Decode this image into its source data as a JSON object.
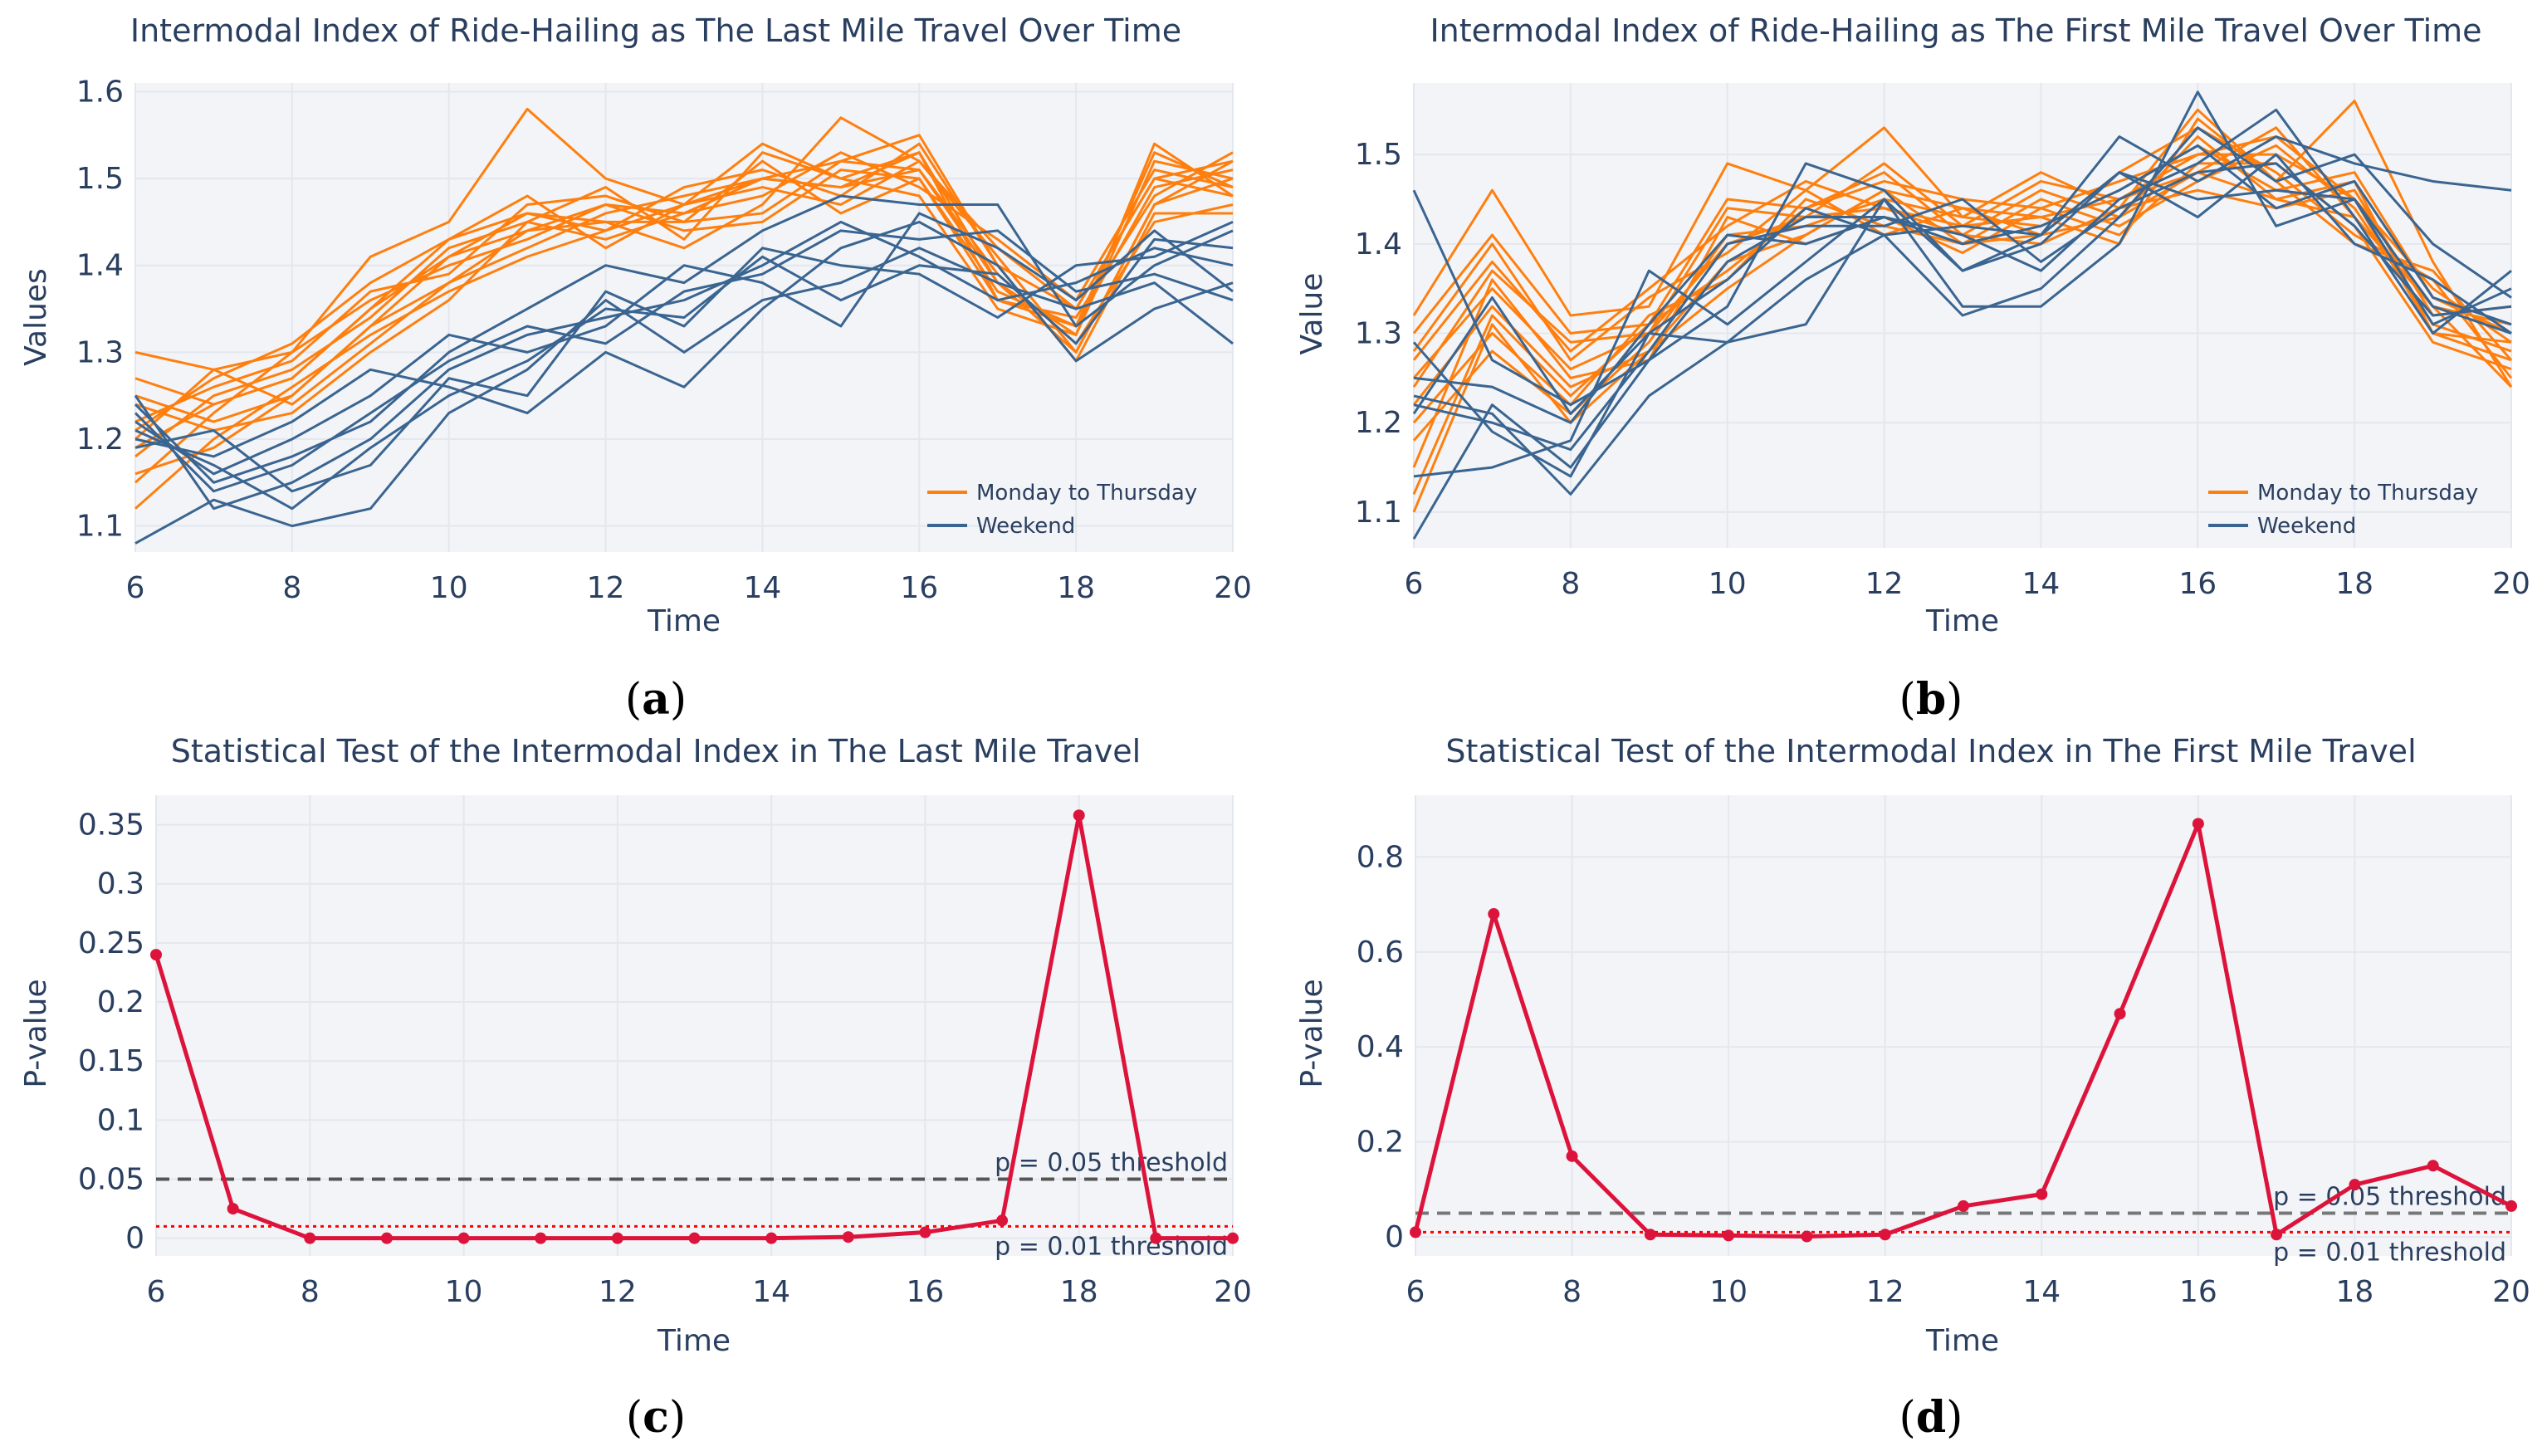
{
  "chart_data": [
    {
      "id": "a",
      "type": "line",
      "title": "Intermodal Index of Ride-Hailing as The Last Mile Travel Over Time",
      "xlabel": "Time",
      "ylabel": "Values",
      "xlim": [
        6,
        20
      ],
      "ylim": [
        1.07,
        1.61
      ],
      "xticks": [
        6,
        8,
        10,
        12,
        14,
        16,
        18,
        20
      ],
      "yticks": [
        1.1,
        1.2,
        1.3,
        1.4,
        1.5,
        1.6
      ],
      "ytick_labels": [
        "1.1",
        "1.2",
        "1.3",
        "1.4",
        "1.5",
        "1.6"
      ],
      "x": [
        6,
        7,
        8,
        9,
        10,
        11,
        12,
        13,
        14,
        15,
        16,
        17,
        18,
        19,
        20
      ],
      "legend_position": "bottom-right",
      "caption": "a",
      "series_groups": [
        {
          "name": "Monday to Thursday",
          "color": "#ff7f0e",
          "lines": [
            [
              1.3,
              1.28,
              1.3,
              1.41,
              1.45,
              1.58,
              1.5,
              1.47,
              1.5,
              1.52,
              1.55,
              1.4,
              1.35,
              1.5,
              1.52
            ],
            [
              1.27,
              1.24,
              1.27,
              1.35,
              1.43,
              1.46,
              1.44,
              1.47,
              1.54,
              1.5,
              1.53,
              1.38,
              1.32,
              1.54,
              1.48
            ],
            [
              1.25,
              1.22,
              1.25,
              1.33,
              1.41,
              1.44,
              1.45,
              1.42,
              1.47,
              1.57,
              1.52,
              1.41,
              1.3,
              1.47,
              1.5
            ],
            [
              1.22,
              1.26,
              1.29,
              1.37,
              1.39,
              1.47,
              1.48,
              1.45,
              1.52,
              1.46,
              1.5,
              1.36,
              1.34,
              1.48,
              1.53
            ],
            [
              1.2,
              1.28,
              1.24,
              1.31,
              1.38,
              1.42,
              1.46,
              1.48,
              1.5,
              1.49,
              1.51,
              1.39,
              1.31,
              1.45,
              1.47
            ],
            [
              1.18,
              1.25,
              1.28,
              1.34,
              1.42,
              1.45,
              1.43,
              1.46,
              1.48,
              1.53,
              1.49,
              1.43,
              1.36,
              1.51,
              1.49
            ],
            [
              1.15,
              1.23,
              1.3,
              1.36,
              1.4,
              1.43,
              1.47,
              1.44,
              1.45,
              1.51,
              1.5,
              1.37,
              1.33,
              1.49,
              1.51
            ],
            [
              1.12,
              1.2,
              1.26,
              1.32,
              1.37,
              1.41,
              1.44,
              1.49,
              1.51,
              1.48,
              1.54,
              1.4,
              1.29,
              1.46,
              1.46
            ],
            [
              1.24,
              1.21,
              1.23,
              1.3,
              1.36,
              1.45,
              1.49,
              1.43,
              1.53,
              1.5,
              1.48,
              1.35,
              1.32,
              1.52,
              1.5
            ],
            [
              1.21,
              1.27,
              1.31,
              1.38,
              1.43,
              1.48,
              1.42,
              1.47,
              1.49,
              1.47,
              1.52,
              1.42,
              1.35,
              1.5,
              1.48
            ],
            [
              1.19,
              1.24,
              1.27,
              1.35,
              1.41,
              1.46,
              1.45,
              1.45,
              1.46,
              1.52,
              1.51,
              1.38,
              1.3,
              1.47,
              1.52
            ],
            [
              1.16,
              1.19,
              1.25,
              1.33,
              1.38,
              1.44,
              1.47,
              1.46,
              1.5,
              1.49,
              1.53,
              1.36,
              1.33,
              1.53,
              1.49
            ]
          ]
        },
        {
          "name": "Weekend",
          "color": "#3a6591",
          "lines": [
            [
              1.24,
              1.15,
              1.18,
              1.22,
              1.3,
              1.35,
              1.4,
              1.38,
              1.44,
              1.48,
              1.47,
              1.47,
              1.33,
              1.4,
              1.44
            ],
            [
              1.2,
              1.18,
              1.22,
              1.28,
              1.26,
              1.23,
              1.3,
              1.26,
              1.35,
              1.42,
              1.45,
              1.4,
              1.29,
              1.35,
              1.38
            ],
            [
              1.08,
              1.13,
              1.1,
              1.12,
              1.23,
              1.28,
              1.36,
              1.3,
              1.36,
              1.38,
              1.42,
              1.38,
              1.35,
              1.38,
              1.31
            ],
            [
              1.25,
              1.12,
              1.15,
              1.2,
              1.28,
              1.32,
              1.34,
              1.36,
              1.4,
              1.45,
              1.41,
              1.36,
              1.38,
              1.42,
              1.4
            ],
            [
              1.22,
              1.16,
              1.2,
              1.25,
              1.32,
              1.3,
              1.33,
              1.4,
              1.38,
              1.33,
              1.46,
              1.42,
              1.36,
              1.44,
              1.37
            ],
            [
              1.19,
              1.21,
              1.14,
              1.17,
              1.27,
              1.25,
              1.37,
              1.33,
              1.42,
              1.4,
              1.39,
              1.34,
              1.4,
              1.41,
              1.45
            ],
            [
              1.23,
              1.14,
              1.17,
              1.23,
              1.29,
              1.33,
              1.31,
              1.37,
              1.39,
              1.44,
              1.43,
              1.44,
              1.37,
              1.39,
              1.36
            ],
            [
              1.21,
              1.17,
              1.12,
              1.19,
              1.25,
              1.29,
              1.35,
              1.34,
              1.41,
              1.36,
              1.4,
              1.39,
              1.31,
              1.43,
              1.42
            ]
          ]
        }
      ]
    },
    {
      "id": "b",
      "type": "line",
      "title": "Intermodal Index of Ride-Hailing as The First Mile Travel Over Time",
      "xlabel": "Time",
      "ylabel": "Value",
      "xlim": [
        6,
        20
      ],
      "ylim": [
        1.06,
        1.58
      ],
      "xticks": [
        6,
        8,
        10,
        12,
        14,
        16,
        18,
        20
      ],
      "yticks": [
        1.1,
        1.2,
        1.3,
        1.4,
        1.5
      ],
      "ytick_labels": [
        "1.1",
        "1.2",
        "1.3",
        "1.4",
        "1.5"
      ],
      "x": [
        6,
        7,
        8,
        9,
        10,
        11,
        12,
        13,
        14,
        15,
        16,
        17,
        18,
        19,
        20
      ],
      "legend_position": "bottom-right",
      "caption": "b",
      "series_groups": [
        {
          "name": "Monday to Thursday",
          "color": "#ff7f0e",
          "lines": [
            [
              1.32,
              1.46,
              1.32,
              1.33,
              1.49,
              1.46,
              1.53,
              1.43,
              1.48,
              1.44,
              1.55,
              1.47,
              1.56,
              1.38,
              1.24
            ],
            [
              1.3,
              1.41,
              1.3,
              1.31,
              1.45,
              1.44,
              1.47,
              1.45,
              1.44,
              1.47,
              1.5,
              1.5,
              1.45,
              1.35,
              1.29
            ],
            [
              1.27,
              1.38,
              1.28,
              1.35,
              1.42,
              1.47,
              1.44,
              1.41,
              1.46,
              1.43,
              1.52,
              1.45,
              1.47,
              1.3,
              1.27
            ],
            [
              1.25,
              1.35,
              1.26,
              1.3,
              1.4,
              1.43,
              1.49,
              1.42,
              1.43,
              1.45,
              1.48,
              1.53,
              1.43,
              1.33,
              1.31
            ],
            [
              1.22,
              1.33,
              1.24,
              1.28,
              1.38,
              1.41,
              1.46,
              1.44,
              1.41,
              1.48,
              1.53,
              1.48,
              1.41,
              1.36,
              1.25
            ],
            [
              1.2,
              1.3,
              1.22,
              1.32,
              1.36,
              1.45,
              1.42,
              1.4,
              1.45,
              1.42,
              1.47,
              1.51,
              1.44,
              1.31,
              1.28
            ],
            [
              1.18,
              1.28,
              1.21,
              1.29,
              1.41,
              1.42,
              1.45,
              1.43,
              1.42,
              1.46,
              1.51,
              1.46,
              1.48,
              1.34,
              1.3
            ],
            [
              1.15,
              1.36,
              1.25,
              1.27,
              1.43,
              1.4,
              1.43,
              1.39,
              1.44,
              1.41,
              1.49,
              1.49,
              1.42,
              1.29,
              1.26
            ],
            [
              1.12,
              1.32,
              1.23,
              1.31,
              1.37,
              1.44,
              1.48,
              1.41,
              1.4,
              1.44,
              1.46,
              1.44,
              1.46,
              1.32,
              1.33
            ],
            [
              1.28,
              1.4,
              1.27,
              1.34,
              1.39,
              1.46,
              1.41,
              1.44,
              1.43,
              1.4,
              1.54,
              1.47,
              1.4,
              1.37,
              1.27
            ],
            [
              1.24,
              1.37,
              1.29,
              1.3,
              1.44,
              1.43,
              1.44,
              1.42,
              1.47,
              1.45,
              1.5,
              1.52,
              1.45,
              1.3,
              1.29
            ],
            [
              1.1,
              1.31,
              1.2,
              1.28,
              1.35,
              1.41,
              1.46,
              1.4,
              1.41,
              1.43,
              1.48,
              1.45,
              1.43,
              1.33,
              1.24
            ]
          ]
        },
        {
          "name": "Weekend",
          "color": "#3a6591",
          "lines": [
            [
              1.46,
              1.27,
              1.22,
              1.27,
              1.33,
              1.49,
              1.46,
              1.37,
              1.41,
              1.52,
              1.47,
              1.52,
              1.49,
              1.47,
              1.46
            ],
            [
              1.23,
              1.21,
              1.12,
              1.23,
              1.29,
              1.31,
              1.45,
              1.33,
              1.33,
              1.4,
              1.57,
              1.42,
              1.45,
              1.33,
              1.3
            ],
            [
              1.07,
              1.22,
              1.15,
              1.27,
              1.38,
              1.43,
              1.43,
              1.41,
              1.37,
              1.45,
              1.49,
              1.55,
              1.43,
              1.3,
              1.37
            ],
            [
              1.14,
              1.15,
              1.18,
              1.37,
              1.31,
              1.38,
              1.45,
              1.37,
              1.4,
              1.48,
              1.43,
              1.5,
              1.4,
              1.36,
              1.3
            ],
            [
              1.21,
              1.34,
              1.21,
              1.3,
              1.36,
              1.44,
              1.41,
              1.42,
              1.41,
              1.48,
              1.45,
              1.46,
              1.45,
              1.31,
              1.35
            ],
            [
              1.29,
              1.19,
              1.14,
              1.3,
              1.29,
              1.36,
              1.41,
              1.32,
              1.35,
              1.43,
              1.53,
              1.47,
              1.5,
              1.4,
              1.34
            ],
            [
              1.25,
              1.24,
              1.2,
              1.31,
              1.41,
              1.4,
              1.43,
              1.4,
              1.42,
              1.46,
              1.51,
              1.44,
              1.47,
              1.34,
              1.31
            ],
            [
              1.22,
              1.2,
              1.17,
              1.28,
              1.4,
              1.42,
              1.42,
              1.45,
              1.38,
              1.44,
              1.48,
              1.49,
              1.42,
              1.32,
              1.33
            ]
          ]
        }
      ]
    },
    {
      "id": "c",
      "type": "line",
      "title": "Statistical Test of the Intermodal Index in The Last Mile Travel",
      "xlabel": "Time",
      "ylabel": "P-value",
      "xlim": [
        6,
        20
      ],
      "ylim": [
        -0.015,
        0.375
      ],
      "xticks": [
        6,
        8,
        10,
        12,
        14,
        16,
        18,
        20
      ],
      "yticks": [
        0,
        0.05,
        0.1,
        0.15,
        0.2,
        0.25,
        0.3,
        0.35
      ],
      "ytick_labels": [
        "0",
        "0.05",
        "0.1",
        "0.15",
        "0.2",
        "0.25",
        "0.3",
        "0.35"
      ],
      "x": [
        6,
        7,
        8,
        9,
        10,
        11,
        12,
        13,
        14,
        15,
        16,
        17,
        18,
        19,
        20
      ],
      "caption": "c",
      "series": [
        {
          "name": "P-value",
          "color": "#dc143c",
          "values": [
            0.24,
            0.025,
            0.0,
            0.0,
            0.0,
            0.0,
            0.0,
            0.0,
            0.0,
            0.001,
            0.005,
            0.015,
            0.358,
            0.0,
            0.0
          ]
        }
      ],
      "thresholds": [
        {
          "value": 0.05,
          "label": "p = 0.05 threshold",
          "color": "#555555",
          "style": "dash",
          "label_position": "above"
        },
        {
          "value": 0.01,
          "label": "p = 0.01 threshold",
          "color": "#ff0000",
          "style": "dot",
          "label_position": "below"
        }
      ]
    },
    {
      "id": "d",
      "type": "line",
      "title": "Statistical Test of the Intermodal Index in The First Mile Travel",
      "xlabel": "Time",
      "ylabel": "P-value",
      "xlim": [
        6,
        20
      ],
      "ylim": [
        -0.04,
        0.93
      ],
      "xticks": [
        6,
        8,
        10,
        12,
        14,
        16,
        18,
        20
      ],
      "yticks": [
        0,
        0.2,
        0.4,
        0.6,
        0.8
      ],
      "ytick_labels": [
        "0",
        "0.2",
        "0.4",
        "0.6",
        "0.8"
      ],
      "x": [
        6,
        7,
        8,
        9,
        10,
        11,
        12,
        13,
        14,
        15,
        16,
        17,
        18,
        19,
        20
      ],
      "caption": "d",
      "series": [
        {
          "name": "P-value",
          "color": "#dc143c",
          "values": [
            0.01,
            0.68,
            0.17,
            0.005,
            0.003,
            0.001,
            0.005,
            0.065,
            0.09,
            0.47,
            0.87,
            0.005,
            0.11,
            0.15,
            0.065
          ]
        }
      ],
      "thresholds": [
        {
          "value": 0.05,
          "label": "p = 0.05 threshold",
          "color": "#777777",
          "style": "dash",
          "label_position": "above"
        },
        {
          "value": 0.01,
          "label": "p = 0.01 threshold",
          "color": "#ff0000",
          "style": "dot",
          "label_position": "below"
        }
      ]
    }
  ]
}
